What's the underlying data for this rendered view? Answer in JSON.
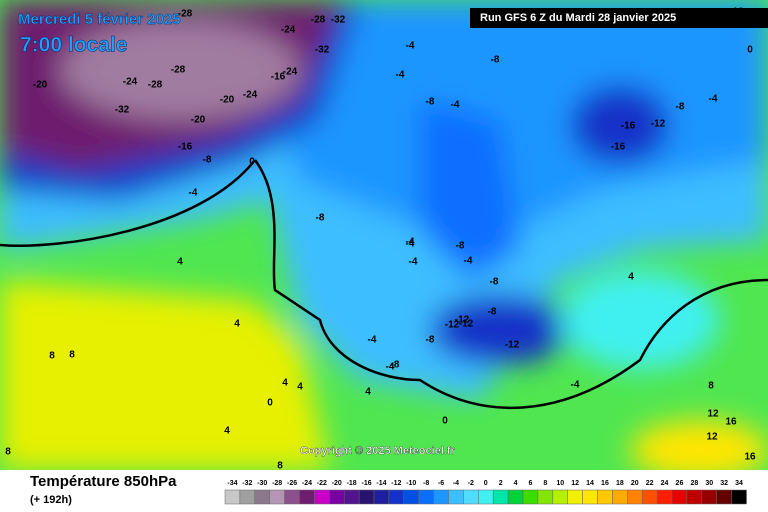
{
  "header": {
    "date": "Mercredi 5 février 2025",
    "time": "7:00 locale",
    "run": "Run GFS 6 Z du Mardi 28 janvier 2025"
  },
  "copyright": "Copyright © 2025 Meteociel.fr",
  "footer": {
    "title": "Température 850hPa",
    "lead": "(+ 192h)"
  },
  "legend": {
    "ticks": [
      -34,
      -32,
      -30,
      -28,
      -26,
      -24,
      -22,
      -20,
      -18,
      -16,
      -14,
      -12,
      -10,
      -8,
      -6,
      -4,
      -2,
      0,
      2,
      4,
      6,
      8,
      10,
      12,
      14,
      16,
      18,
      20,
      22,
      24,
      26,
      28,
      30,
      32,
      34
    ],
    "colors": [
      "#c8c8c8",
      "#a0a0a0",
      "#8c788c",
      "#b496b4",
      "#8c508c",
      "#6e1e6e",
      "#c800c8",
      "#7800a0",
      "#50148c",
      "#28146e",
      "#1e1ea0",
      "#1432c8",
      "#0050e6",
      "#0a6eff",
      "#1e96ff",
      "#3cbeff",
      "#50dcff",
      "#40f0f0",
      "#00e6aa",
      "#00d23c",
      "#3cdc00",
      "#82e600",
      "#b4f000",
      "#f0f000",
      "#ffe600",
      "#ffc800",
      "#ffaa00",
      "#ff8200",
      "#ff5000",
      "#ff1e00",
      "#e60000",
      "#be0000",
      "#960000",
      "#640000",
      "#000000"
    ]
  },
  "map_labels": [
    "-28",
    "-20",
    "-24",
    "-32",
    "-28",
    "-32",
    "-24",
    "-20",
    "-16",
    "-28",
    "-24",
    "-28",
    "-32",
    "-24",
    "-20",
    "-16",
    "-8",
    "0",
    "-4",
    "-4",
    "-8",
    "-4",
    "-8",
    "-4",
    "-8",
    "-4",
    "-16",
    "-12",
    "-16",
    "-8",
    "-4",
    "-4",
    "-8",
    "-4",
    "-4",
    "-8",
    "-12",
    "-12",
    "-8",
    "-12",
    "-4",
    "-8",
    "-4",
    "0",
    "4",
    "4",
    "8",
    "8",
    "4",
    "4",
    "4",
    "4",
    "8",
    "8",
    "0",
    "-12",
    "-8",
    "-4",
    "4",
    "8",
    "12",
    "16",
    "16",
    "12",
    "12",
    "0"
  ]
}
